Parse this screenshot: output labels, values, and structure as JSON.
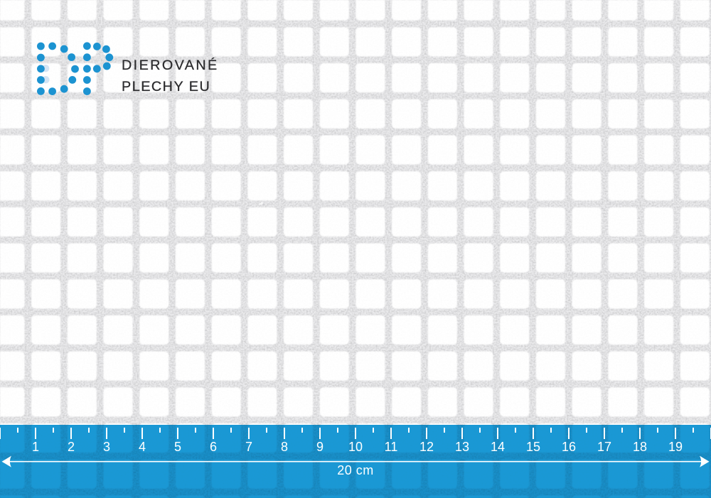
{
  "brand": {
    "logo_text": "DP",
    "line1": "DIEROVANÉ",
    "line2": "PLECHY EU"
  },
  "ruler": {
    "numbers": [
      "1",
      "2",
      "3",
      "4",
      "5",
      "6",
      "7",
      "8",
      "9",
      "10",
      "11",
      "12",
      "13",
      "14",
      "15",
      "16",
      "17",
      "18",
      "19"
    ],
    "length_label": "20 cm"
  },
  "colors": {
    "ruler_blue": "#1c9cd8",
    "logo_blue": "#1f93d1",
    "logo_ghost_blue": "#c9e0f2",
    "sheet_web_gray": "#e3e3e5",
    "hole_white": "#ffffff",
    "brand_text": "#2d2d2f",
    "ruler_text": "#ffffff"
  }
}
